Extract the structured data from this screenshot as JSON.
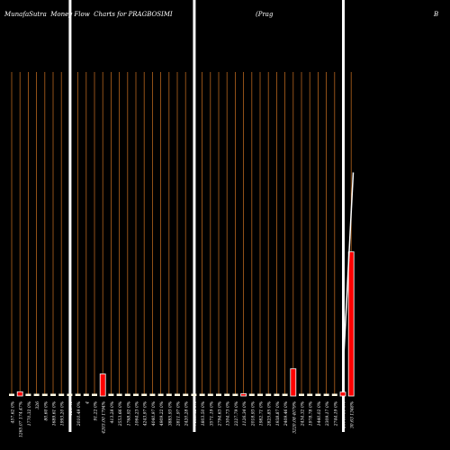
{
  "header": {
    "title": "MunafaSutra  Money Flow  Charts for PRAGBOSIMI",
    "company": "(Prag",
    "suffix": "B"
  },
  "chart_data": {
    "type": "bar",
    "title": "MunafaSutra  Money Flow  Charts for PRAGBOSIMI",
    "xlabel": "",
    "ylabel": "",
    "grid": true,
    "colors": {
      "background": "#000000",
      "grid": "#b5651d",
      "baseline": "#fffbe6",
      "up_bar": "#ff0000",
      "price_line": "#ffffff"
    },
    "categories": [
      "457.62 0%",
      "1265.07 174.47%",
      "1770.32 0%",
      "326",
      "80.60 0%",
      "1689.61 0%",
      "1993.20 0%",
      "1247.4",
      "2010.49 0%",
      "4",
      "91.22 0%",
      "4203.00 1794%",
      "413.28 0%",
      "2553.66 0%",
      "1768.92 0%",
      "1064.23 0%",
      "4243.97 0%",
      "4040.97 0%",
      "4909.22 0%",
      "3885.93 0%",
      "2811.97 0%",
      "2420.28 0%",
      "7138.42 0%",
      "1803.50 0%",
      "3571.19 0%",
      "2794.63 0%",
      "1304.73 0%",
      "2227.79 0%",
      "1126.34 0%",
      "2018.93 0%",
      "1982.71 0%",
      "2825.85 0%",
      "1938.87 0%",
      "2409.46 0%",
      "3220.08 4079%",
      "2434.32 0%",
      "1978.78 0%",
      "1440.02 0%",
      "2309.17 0%",
      "2744.19 0%",
      "21540.11 0%",
      "30.63 1348%"
    ],
    "values": [
      0,
      1.3,
      0,
      0,
      0,
      0,
      0,
      0,
      0,
      0,
      0,
      6.8,
      0,
      0,
      0,
      0,
      0,
      0,
      0,
      0,
      0,
      0,
      0,
      0,
      0,
      0,
      0,
      0,
      0.6,
      0,
      0,
      0,
      0,
      0,
      8.4,
      0,
      0,
      0,
      0,
      0,
      1.2,
      44.5
    ],
    "bar_colors": [
      "cream",
      "red",
      "cream",
      "cream",
      "cream",
      "cream",
      "cream",
      "cream",
      "cream",
      "cream",
      "cream",
      "red",
      "cream",
      "cream",
      "cream",
      "cream",
      "cream",
      "cream",
      "cream",
      "cream",
      "cream",
      "cream",
      "cream",
      "cream",
      "cream",
      "cream",
      "cream",
      "cream",
      "red",
      "cream",
      "cream",
      "cream",
      "cream",
      "cream",
      "red",
      "cream",
      "cream",
      "cream",
      "cream",
      "cream",
      "red",
      "red"
    ],
    "ylim": [
      0,
      100
    ],
    "price_line": [
      {
        "index": 40,
        "value": 7
      },
      {
        "index": 41.25,
        "value": 69
      }
    ],
    "markers": [
      7,
      22,
      40
    ]
  }
}
